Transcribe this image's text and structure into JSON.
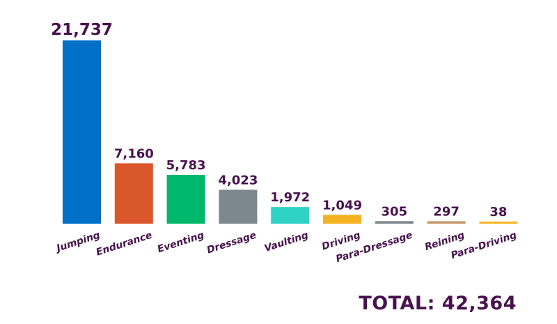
{
  "chart_data": {
    "type": "bar",
    "categories": [
      "Jumping",
      "Endurance",
      "Eventing",
      "Dressage",
      "Vaulting",
      "Driving",
      "Para-Dressage",
      "Reining",
      "Para-Driving"
    ],
    "values": [
      21737,
      7160,
      5783,
      4023,
      1972,
      1049,
      305,
      297,
      38
    ],
    "value_labels": [
      "21,737",
      "7,160",
      "5,783",
      "4,023",
      "1,972",
      "1,049",
      "305",
      "297",
      "38"
    ],
    "colors": [
      "#0070c9",
      "#d9572b",
      "#00b86b",
      "#7c878e",
      "#2ed3c5",
      "#f5b323",
      "#7c878e",
      "#c49a6c",
      "#f5b323"
    ],
    "label_color": "#4a1150",
    "grid": false,
    "legend": "none",
    "total_label": "TOTAL: 42,364"
  }
}
